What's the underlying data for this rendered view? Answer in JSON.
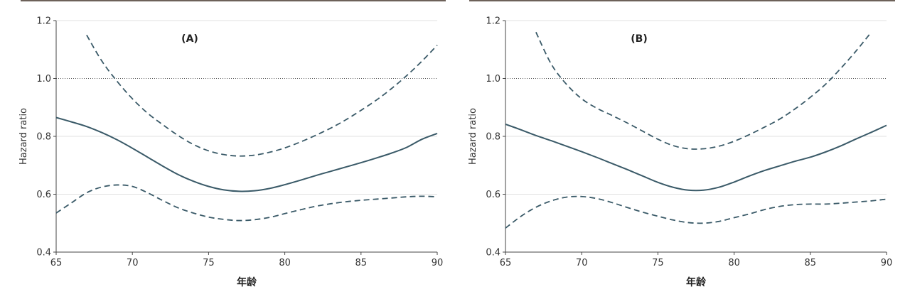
{
  "chart_data": [
    {
      "type": "line",
      "panel_label": "(A)",
      "xlabel": "年龄",
      "ylabel": "Hazard ratio",
      "xlim": [
        65,
        90
      ],
      "ylim": [
        0.4,
        1.2
      ],
      "xticks": [
        65,
        70,
        75,
        80,
        85,
        90
      ],
      "yticks": [
        0.4,
        0.6,
        0.8,
        1.0,
        1.2
      ],
      "ytick_labels": [
        "0.4",
        "0.6",
        "0.8",
        "1.0",
        "1.2"
      ],
      "reference_line": 1.0,
      "grid": "horizontal",
      "colors": {
        "line": "#3a5a68",
        "grid": "#e2e2e2",
        "reference": "#555555",
        "top_bar": "#6d6159"
      },
      "series": [
        {
          "style": "solid",
          "x": [
            65,
            66,
            67,
            68,
            69,
            70,
            71,
            72,
            73,
            74,
            75,
            76,
            77,
            78,
            79,
            80,
            81,
            82,
            83,
            84,
            85,
            86,
            87,
            88,
            89,
            90
          ],
          "values": [
            0.865,
            0.85,
            0.834,
            0.813,
            0.788,
            0.759,
            0.728,
            0.697,
            0.668,
            0.645,
            0.627,
            0.615,
            0.61,
            0.612,
            0.62,
            0.633,
            0.648,
            0.664,
            0.679,
            0.694,
            0.709,
            0.725,
            0.742,
            0.762,
            0.79,
            0.81
          ]
        },
        {
          "style": "dashed",
          "x": [
            67,
            68,
            69,
            70,
            71,
            72,
            73,
            74,
            75,
            76,
            77,
            78,
            79,
            80,
            81,
            82,
            83,
            84,
            85,
            86,
            87,
            88,
            89,
            90
          ],
          "values": [
            1.15,
            1.06,
            0.99,
            0.93,
            0.88,
            0.84,
            0.803,
            0.772,
            0.75,
            0.737,
            0.732,
            0.735,
            0.745,
            0.76,
            0.78,
            0.803,
            0.828,
            0.857,
            0.89,
            0.925,
            0.965,
            1.01,
            1.06,
            1.115
          ]
        },
        {
          "style": "dashed",
          "x": [
            65,
            66,
            67,
            68,
            69,
            70,
            71,
            72,
            73,
            74,
            75,
            76,
            77,
            78,
            79,
            80,
            81,
            82,
            83,
            84,
            85,
            86,
            87,
            88,
            89,
            90
          ],
          "values": [
            0.535,
            0.57,
            0.605,
            0.625,
            0.632,
            0.627,
            0.605,
            0.578,
            0.553,
            0.535,
            0.521,
            0.513,
            0.509,
            0.512,
            0.52,
            0.533,
            0.546,
            0.558,
            0.567,
            0.574,
            0.579,
            0.583,
            0.587,
            0.591,
            0.593,
            0.591
          ]
        }
      ]
    },
    {
      "type": "line",
      "panel_label": "(B)",
      "xlabel": "年龄",
      "ylabel": "Hazard ratio",
      "xlim": [
        65,
        90
      ],
      "ylim": [
        0.4,
        1.2
      ],
      "xticks": [
        65,
        70,
        75,
        80,
        85,
        90
      ],
      "yticks": [
        0.4,
        0.6,
        0.8,
        1.0,
        1.2
      ],
      "ytick_labels": [
        "0.4",
        "0.6",
        "0.8",
        "1.0",
        "1.2"
      ],
      "reference_line": 1.0,
      "grid": "horizontal",
      "colors": {
        "line": "#3a5a68",
        "grid": "#e2e2e2",
        "reference": "#555555",
        "top_bar": "#6d6159"
      },
      "series": [
        {
          "style": "solid",
          "x": [
            65,
            66,
            67,
            68,
            69,
            70,
            71,
            72,
            73,
            74,
            75,
            76,
            77,
            78,
            79,
            80,
            81,
            82,
            83,
            84,
            85,
            86,
            87,
            88,
            89,
            90
          ],
          "values": [
            0.842,
            0.823,
            0.803,
            0.785,
            0.766,
            0.747,
            0.727,
            0.706,
            0.685,
            0.663,
            0.641,
            0.624,
            0.614,
            0.614,
            0.624,
            0.642,
            0.663,
            0.682,
            0.698,
            0.714,
            0.728,
            0.746,
            0.767,
            0.791,
            0.814,
            0.838
          ]
        },
        {
          "style": "dashed",
          "x": [
            67,
            68,
            69,
            70,
            71,
            72,
            73,
            74,
            75,
            76,
            77,
            78,
            79,
            80,
            81,
            82,
            83,
            84,
            85,
            86,
            87,
            88,
            89
          ],
          "values": [
            1.16,
            1.05,
            0.98,
            0.93,
            0.897,
            0.872,
            0.846,
            0.818,
            0.79,
            0.768,
            0.757,
            0.757,
            0.766,
            0.783,
            0.806,
            0.832,
            0.86,
            0.895,
            0.935,
            0.98,
            1.035,
            1.095,
            1.16
          ]
        },
        {
          "style": "dashed",
          "x": [
            65,
            66,
            67,
            68,
            69,
            70,
            71,
            72,
            73,
            74,
            75,
            76,
            77,
            78,
            79,
            80,
            81,
            82,
            83,
            84,
            85,
            86,
            87,
            88,
            89,
            90
          ],
          "values": [
            0.483,
            0.523,
            0.555,
            0.577,
            0.59,
            0.592,
            0.585,
            0.571,
            0.554,
            0.538,
            0.524,
            0.511,
            0.502,
            0.5,
            0.506,
            0.519,
            0.532,
            0.547,
            0.558,
            0.564,
            0.566,
            0.566,
            0.569,
            0.573,
            0.577,
            0.583
          ]
        }
      ]
    }
  ]
}
